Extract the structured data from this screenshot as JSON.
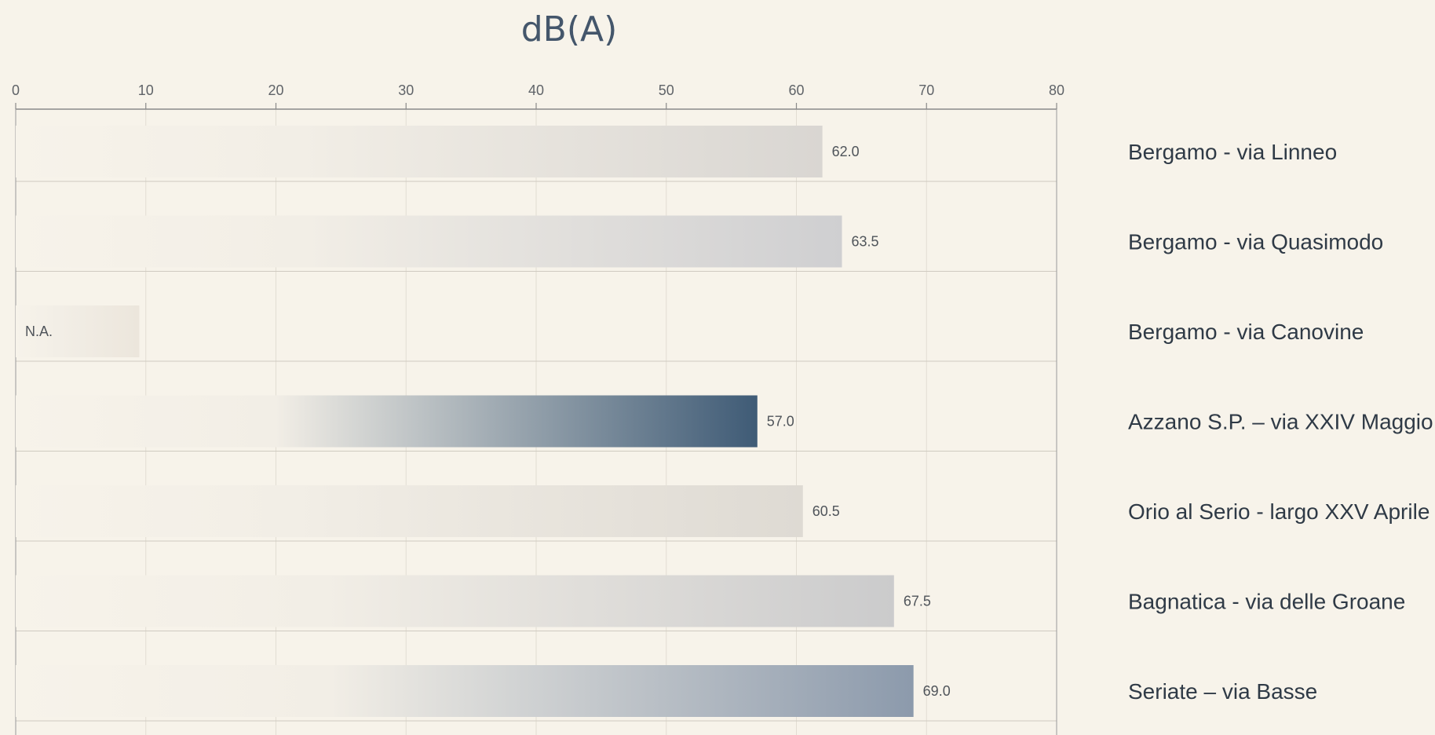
{
  "chart_data": {
    "type": "bar",
    "orientation": "horizontal",
    "title": "dB(A)",
    "xlim": [
      0,
      80
    ],
    "xticks": [
      "0",
      "10",
      "20",
      "30",
      "40",
      "50",
      "60",
      "70",
      "80"
    ],
    "categories": [
      "Bergamo - via Linneo",
      "Bergamo - via Quasimodo",
      "Bergamo - via Canovine",
      "Azzano S.P. – via XXIV Maggio",
      "Orio al Serio - largo XXV Aprile",
      "Bagnatica - via delle Groane",
      "Seriate – via Basse"
    ],
    "values": [
      62.0,
      63.5,
      null,
      57.0,
      60.5,
      67.5,
      69.0
    ],
    "value_labels": [
      "62.0",
      "63.5",
      "N.A.",
      "57.0",
      "60.5",
      "67.5",
      "69.0"
    ],
    "bar_end_colors": [
      "#d9d6d2",
      "#cfcfd1",
      "#ece6dc",
      "#3f5b76",
      "#dedad3",
      "#cbcbcc",
      "#8c9aac"
    ],
    "gridlines": true,
    "legend": "none"
  }
}
